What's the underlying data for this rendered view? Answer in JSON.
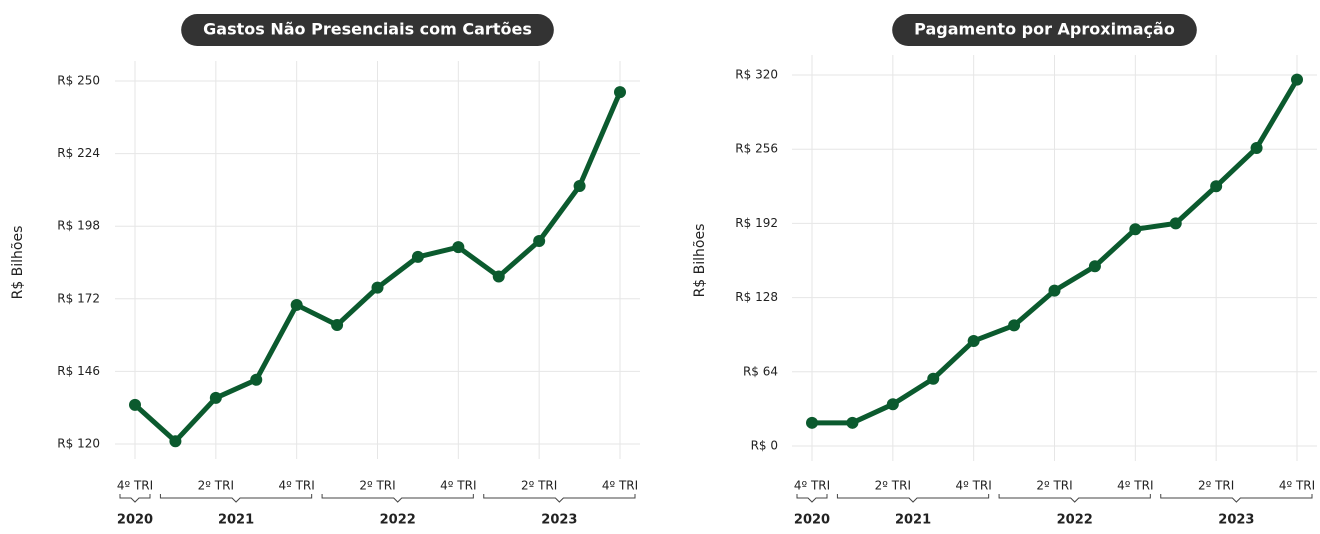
{
  "chart_data": [
    {
      "type": "line",
      "title": "Gastos Não Presenciais com Cartões",
      "y_label": "R$ Bilhões",
      "categories": [
        "4º TRI",
        null,
        "2º TRI",
        null,
        "4º TRI",
        null,
        "2º TRI",
        null,
        "4º TRI",
        null,
        "2º TRI",
        null,
        "4º TRI"
      ],
      "years": [
        "2020",
        "2021",
        "2022",
        "2023"
      ],
      "series": [
        {
          "name": "Gastos Não Presenciais com Cartões",
          "color": "#0b5a2e",
          "values": [
            134,
            121,
            136.5,
            143,
            169.8,
            162.6,
            176,
            187,
            190.5,
            180,
            192.7,
            212.4,
            246
          ]
        }
      ],
      "ylim": [
        120,
        250
      ],
      "yticks": [
        {
          "value": 120,
          "label": "R$ 120"
        },
        {
          "value": 146,
          "label": "R$ 146"
        },
        {
          "value": 172,
          "label": "R$ 172"
        },
        {
          "value": 198,
          "label": "R$ 198"
        },
        {
          "value": 224,
          "label": "R$ 224"
        },
        {
          "value": 250,
          "label": "R$ 250"
        }
      ],
      "grid": true
    },
    {
      "type": "line",
      "title": "Pagamento por Aproximação",
      "y_label": "R$ Bilhões",
      "categories": [
        "4º TRI",
        null,
        "2º TRI",
        null,
        "4º TRI",
        null,
        "2º TRI",
        null,
        "4º TRI",
        null,
        "2º TRI",
        null,
        "4º TRI"
      ],
      "years": [
        "2020",
        "2021",
        "2022",
        "2023"
      ],
      "series": [
        {
          "name": "Pagamento por Aproximação",
          "color": "#0b5a2e",
          "values": [
            20,
            20,
            36,
            58,
            90.6,
            104,
            134,
            155,
            187,
            192,
            224,
            257,
            316
          ]
        }
      ],
      "ylim": [
        0,
        320
      ],
      "yticks": [
        {
          "value": 0,
          "label": "R$ 0"
        },
        {
          "value": 64,
          "label": "R$ 64"
        },
        {
          "value": 128,
          "label": "R$ 128"
        },
        {
          "value": 192,
          "label": "R$ 192"
        },
        {
          "value": 256,
          "label": "R$ 256"
        },
        {
          "value": 320,
          "label": "R$ 320"
        }
      ],
      "grid": true
    }
  ]
}
